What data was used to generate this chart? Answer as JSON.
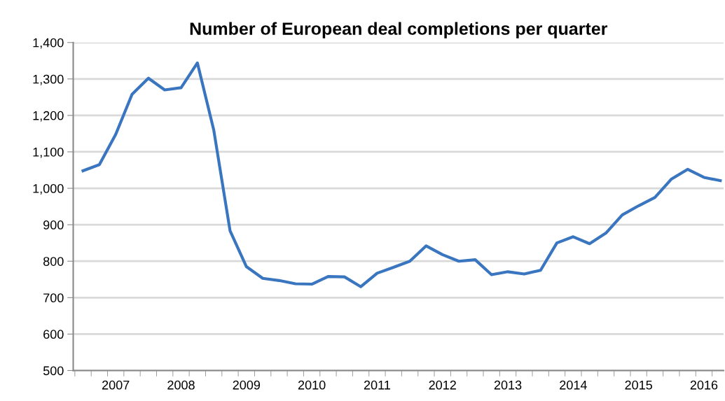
{
  "chart_data": {
    "type": "line",
    "title": "Number of European deal completions per quarter",
    "categories": [
      null,
      null,
      "2007",
      null,
      null,
      null,
      "2008",
      null,
      null,
      null,
      "2009",
      null,
      null,
      null,
      "2010",
      null,
      null,
      null,
      "2011",
      null,
      null,
      null,
      "2012",
      null,
      null,
      null,
      "2013",
      null,
      null,
      null,
      "2014",
      null,
      null,
      null,
      "2015",
      null,
      null,
      null,
      "2016",
      null
    ],
    "series": [
      {
        "color": "#3a75c0",
        "values": [
          1048,
          1065,
          1148,
          1258,
          1302,
          1270,
          1276,
          1344,
          1160,
          883,
          785,
          753,
          747,
          738,
          737,
          758,
          757,
          730,
          767,
          783,
          800,
          842,
          818,
          800,
          804,
          763,
          771,
          765,
          775,
          850,
          867,
          848,
          877,
          927,
          952,
          975,
          1025,
          1052,
          1030,
          1021
        ]
      }
    ],
    "ylim": [
      500,
      1400
    ],
    "yticks": [
      500,
      600,
      700,
      800,
      900,
      {
        "value": 1000,
        "label": "1,000"
      },
      {
        "value": 1100,
        "label": "1,100"
      },
      {
        "value": 1200,
        "label": "1,200"
      },
      {
        "value": 1300,
        "label": "1,300"
      },
      {
        "value": 1400,
        "label": "1,400"
      }
    ],
    "grid": "y",
    "marker": "none",
    "line_style": "solid"
  }
}
